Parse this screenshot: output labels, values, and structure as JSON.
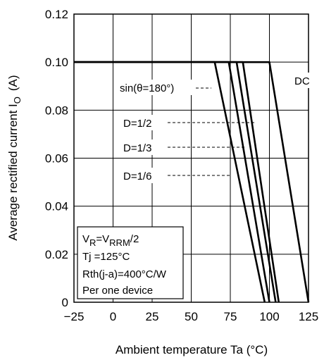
{
  "chart_data": {
    "type": "line",
    "xlabel": "Ambient temperature   Ta   (°C)",
    "ylabel": "Average rectified current   I",
    "ylabel_sub": "O",
    "ylabel_unit": "(A)",
    "xlim": [
      -25,
      125
    ],
    "ylim": [
      0,
      0.12
    ],
    "x_ticks": [
      -25,
      0,
      25,
      50,
      75,
      100,
      125
    ],
    "x_tick_labels": [
      "−25",
      "0",
      "25",
      "50",
      "75",
      "100",
      "125"
    ],
    "y_ticks": [
      0,
      0.02,
      0.04,
      0.06,
      0.08,
      0.1,
      0.12
    ],
    "y_tick_labels": [
      "0",
      "0.02",
      "0.04",
      "0.06",
      "0.08",
      "0.10",
      "0.12"
    ],
    "grid": true,
    "series": [
      {
        "name": "D=1/6",
        "x": [
          -25,
          65,
          97
        ],
        "y": [
          0.1,
          0.1,
          0
        ]
      },
      {
        "name": "D=1/3",
        "x": [
          -25,
          74,
          100
        ],
        "y": [
          0.1,
          0.1,
          0
        ]
      },
      {
        "name": "D=1/2",
        "x": [
          -25,
          79,
          104
        ],
        "y": [
          0.1,
          0.1,
          0
        ]
      },
      {
        "name": "sin(θ=180°)",
        "x": [
          -25,
          83,
          106
        ],
        "y": [
          0.1,
          0.1,
          0
        ]
      },
      {
        "name": "DC",
        "x": [
          -25,
          100,
          125
        ],
        "y": [
          0.1,
          0.1,
          0
        ]
      }
    ],
    "annotations": {
      "sin": "sin(θ=180°)",
      "dc": "DC",
      "d12": "D=1/2",
      "d13": "D=1/3",
      "d16": "D=1/6"
    },
    "conditions": {
      "vr_main": "V",
      "vr_sub1": "R",
      "vr_eq": "=V",
      "vr_sub2": "RRM",
      "vr_tail": "/2",
      "tj": "Tj =125°C",
      "rth": "Rth(j-a)=400°C/W",
      "device": "Per one device"
    }
  }
}
